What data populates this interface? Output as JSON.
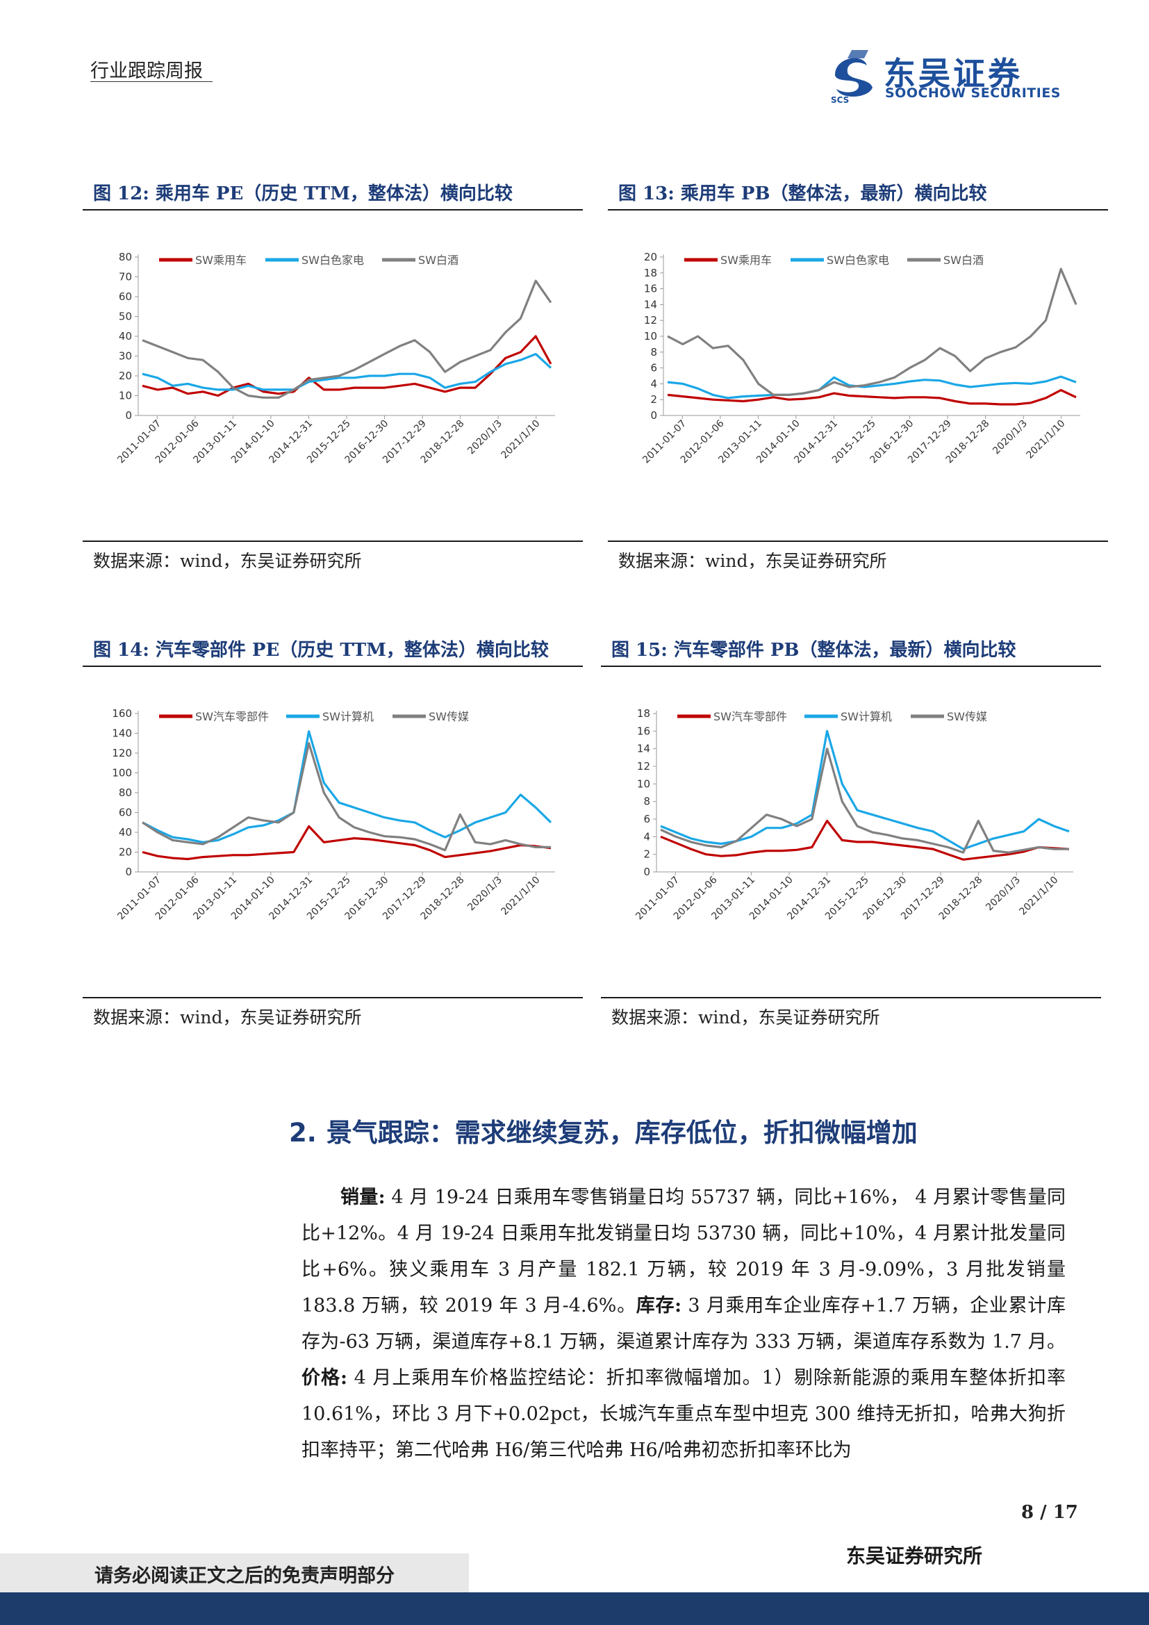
{
  "header": {
    "report_type": "行业跟踪周报",
    "logo_name": "东吴证券",
    "logo_abbr": "SCS",
    "logo_en": "SOOCHOW SECURITIES"
  },
  "figures": [
    {
      "title": "图 12: 乘用车 PE（历史 TTM，整体法）横向比较",
      "source": "数据来源：wind，东吴证券研究所",
      "chart_data": {
        "type": "line",
        "ylim": [
          0,
          80
        ],
        "yticks": [
          "0",
          "10",
          "20",
          "30",
          "40",
          "50",
          "60",
          "70",
          "80"
        ],
        "xticks": [
          "2011-01-07",
          "2012-01-06",
          "2013-01-11",
          "2014-01-10",
          "2014-12-31",
          "2015-12-25",
          "2016-12-30",
          "2017-12-29",
          "2018-12-28",
          "2020/1/3",
          "2021/1/10"
        ],
        "series": [
          {
            "name": "SW乘用车",
            "color": "#c00000",
            "values": [
              15,
              13,
              14,
              11,
              12,
              10,
              14,
              16,
              12,
              11,
              12,
              19,
              13,
              13,
              14,
              14,
              14,
              15,
              16,
              14,
              12,
              14,
              14,
              21,
              29,
              32,
              40,
              26
            ]
          },
          {
            "name": "SW白色家电",
            "color": "#1aa7e6",
            "values": [
              21,
              19,
              15,
              16,
              14,
              13,
              13,
              15,
              13,
              13,
              13,
              17,
              18,
              19,
              19,
              20,
              20,
              21,
              21,
              19,
              14,
              16,
              17,
              22,
              26,
              28,
              31,
              24
            ]
          },
          {
            "name": "SW白酒",
            "color": "#808080",
            "values": [
              38,
              35,
              32,
              29,
              28,
              22,
              14,
              10,
              9,
              9,
              13,
              18,
              19,
              20,
              23,
              27,
              31,
              35,
              38,
              32,
              22,
              27,
              30,
              33,
              42,
              49,
              68,
              57
            ]
          }
        ]
      }
    },
    {
      "title": "图 13: 乘用车 PB（整体法，最新）横向比较",
      "source": "数据来源：wind，东吴证券研究所",
      "chart_data": {
        "type": "line",
        "ylim": [
          0,
          20
        ],
        "yticks": [
          "0",
          "2",
          "4",
          "6",
          "8",
          "10",
          "12",
          "14",
          "16",
          "18",
          "20"
        ],
        "xticks": [
          "2011-01-07",
          "2012-01-06",
          "2013-01-11",
          "2014-01-10",
          "2014-12-31",
          "2015-12-25",
          "2016-12-30",
          "2017-12-29",
          "2018-12-28",
          "2020/1/3",
          "2021/1/10"
        ],
        "series": [
          {
            "name": "SW乘用车",
            "color": "#c00000",
            "values": [
              2.6,
              2.4,
              2.2,
              2.0,
              1.9,
              1.8,
              2.0,
              2.3,
              2.0,
              2.1,
              2.3,
              2.8,
              2.5,
              2.4,
              2.3,
              2.2,
              2.3,
              2.3,
              2.2,
              1.8,
              1.5,
              1.5,
              1.4,
              1.4,
              1.6,
              2.2,
              3.2,
              2.3
            ]
          },
          {
            "name": "SW白色家电",
            "color": "#1aa7e6",
            "values": [
              4.2,
              4.0,
              3.4,
              2.6,
              2.2,
              2.4,
              2.5,
              2.6,
              2.6,
              2.8,
              3.2,
              4.8,
              3.8,
              3.6,
              3.8,
              4.0,
              4.3,
              4.5,
              4.4,
              3.9,
              3.6,
              3.8,
              4.0,
              4.1,
              4.0,
              4.3,
              4.9,
              4.2
            ]
          },
          {
            "name": "SW白酒",
            "color": "#808080",
            "values": [
              10,
              9,
              10,
              8.5,
              8.8,
              7,
              4,
              2.6,
              2.6,
              2.8,
              3.2,
              4.2,
              3.6,
              3.8,
              4.2,
              4.8,
              6,
              7,
              8.5,
              7.5,
              5.6,
              7.2,
              8,
              8.6,
              10,
              12,
              18.5,
              14
            ]
          }
        ]
      }
    },
    {
      "title": "图 14: 汽车零部件 PE（历史 TTM，整体法）横向比较",
      "source": "数据来源：wind，东吴证券研究所",
      "chart_data": {
        "type": "line",
        "ylim": [
          0,
          160
        ],
        "yticks": [
          "0",
          "20",
          "40",
          "60",
          "80",
          "100",
          "120",
          "140",
          "160"
        ],
        "xticks": [
          "2011-01-07",
          "2012-01-06",
          "2013-01-11",
          "2014-01-10",
          "2014-12-31",
          "2015-12-25",
          "2016-12-30",
          "2017-12-29",
          "2018-12-28",
          "2020/1/3",
          "2021/1/10"
        ],
        "series": [
          {
            "name": "SW汽车零部件",
            "color": "#c00000",
            "values": [
              20,
              16,
              14,
              13,
              15,
              16,
              17,
              17,
              18,
              19,
              20,
              46,
              30,
              32,
              34,
              33,
              31,
              29,
              27,
              22,
              15,
              17,
              19,
              21,
              24,
              27,
              26,
              24
            ]
          },
          {
            "name": "SW计算机",
            "color": "#1aa7e6",
            "values": [
              50,
              42,
              35,
              33,
              30,
              32,
              38,
              45,
              47,
              52,
              60,
              142,
              90,
              70,
              65,
              60,
              55,
              52,
              50,
              42,
              35,
              42,
              50,
              55,
              60,
              78,
              65,
              50
            ]
          },
          {
            "name": "SW传媒",
            "color": "#808080",
            "values": [
              50,
              40,
              32,
              30,
              28,
              35,
              45,
              55,
              52,
              50,
              60,
              130,
              80,
              55,
              45,
              40,
              36,
              35,
              33,
              28,
              22,
              58,
              30,
              28,
              32,
              28,
              25,
              25
            ]
          }
        ]
      }
    },
    {
      "title": "图 15: 汽车零部件 PB（整体法，最新）横向比较",
      "source": "数据来源：wind，东吴证券研究所",
      "chart_data": {
        "type": "line",
        "ylim": [
          0,
          18
        ],
        "yticks": [
          "0",
          "2",
          "4",
          "6",
          "8",
          "10",
          "12",
          "14",
          "16",
          "18"
        ],
        "xticks": [
          "2011-01-07",
          "2012-01-06",
          "2013-01-11",
          "2014-01-10",
          "2014-12-31",
          "2015-12-25",
          "2016-12-30",
          "2017-12-29",
          "2018-12-28",
          "2020/1/3",
          "2021/1/10"
        ],
        "series": [
          {
            "name": "SW汽车零部件",
            "color": "#c00000",
            "values": [
              4.0,
              3.3,
              2.6,
              2.0,
              1.8,
              1.9,
              2.2,
              2.4,
              2.4,
              2.5,
              2.8,
              5.8,
              3.6,
              3.4,
              3.4,
              3.2,
              3.0,
              2.8,
              2.6,
              2.0,
              1.4,
              1.6,
              1.8,
              2.0,
              2.3,
              2.8,
              2.7,
              2.6
            ]
          },
          {
            "name": "SW计算机",
            "color": "#1aa7e6",
            "values": [
              5.2,
              4.5,
              3.8,
              3.4,
              3.2,
              3.5,
              4.0,
              5.0,
              5.0,
              5.5,
              6.5,
              16,
              10,
              7,
              6.5,
              6,
              5.5,
              5,
              4.6,
              3.6,
              2.6,
              3.2,
              3.8,
              4.2,
              4.6,
              6,
              5.2,
              4.6
            ]
          },
          {
            "name": "SW传媒",
            "color": "#808080",
            "values": [
              4.8,
              4.0,
              3.4,
              3.0,
              2.8,
              3.5,
              5.0,
              6.5,
              6.0,
              5.2,
              6.0,
              14,
              8,
              5.2,
              4.5,
              4.2,
              3.8,
              3.6,
              3.2,
              2.8,
              2.2,
              5.8,
              2.4,
              2.2,
              2.5,
              2.8,
              2.6,
              2.6
            ]
          }
        ]
      }
    }
  ],
  "section": {
    "number": "2.",
    "title": "景气跟踪：需求继续复苏，库存低位，折扣微幅增加"
  },
  "body": {
    "sales_label": "销量:",
    "sales_text": " 4 月 19-24 日乘用车零售销量日均 55737 辆，同比+16%， 4 月累计零售量同比+12%。4 月 19-24 日乘用车批发销量日均 53730 辆，同比+10%，4 月累计批发量同比+6%。狭义乘用车 3 月产量 182.1 万辆，较 2019 年 3 月-9.09%，3 月批发销量 183.8 万辆，较 2019 年 3 月-4.6%。",
    "inventory_label": "库存:",
    "inventory_text": " 3 月乘用车企业库存+1.7 万辆，企业累计库存为-63 万辆，渠道库存+8.1 万辆，渠道累计库存为 333 万辆，渠道库存系数为 1.7 月。",
    "price_label": "价格:",
    "price_text": " 4 月上乘用车价格监控结论：折扣率微幅增加。1）剔除新能源的乘用车整体折扣率 10.61%，环比 3 月下+0.02pct，长城汽车重点车型中坦克 300 维持无折扣，哈弗大狗折扣率持平；第二代哈弗 H6/第三代哈弗 H6/哈弗初恋折扣率环比为"
  },
  "footer": {
    "page": "8 / 17",
    "institute": "东吴证券研究所",
    "disclaimer": "请务必阅读正文之后的免责声明部分"
  }
}
